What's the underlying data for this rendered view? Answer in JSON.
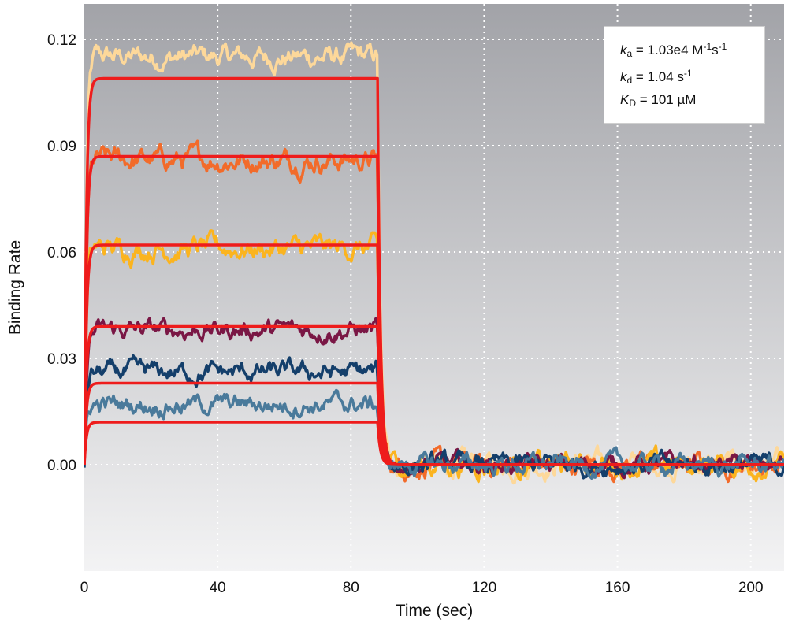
{
  "chart_data": {
    "type": "line",
    "title": "",
    "xlabel": "Time (sec)",
    "ylabel": "Binding Rate",
    "xlim": [
      0,
      210
    ],
    "ylim": [
      -0.03,
      0.13
    ],
    "x_ticks": [
      0,
      40,
      80,
      120,
      160,
      200
    ],
    "x_tick_labels": [
      "0",
      "40",
      "80",
      "120",
      "160",
      "200"
    ],
    "y_ticks": [
      0.0,
      0.03,
      0.06,
      0.09,
      0.12
    ],
    "y_tick_labels": [
      "0.00",
      "0.03",
      "0.06",
      "0.09",
      "0.12"
    ],
    "grid": true,
    "legend": "none",
    "association_phase": [
      0,
      88
    ],
    "dissociation_phase": [
      88,
      210
    ],
    "series": [
      {
        "plateau": 0.115,
        "color": "#fdd89a",
        "noise": 0.0035
      },
      {
        "plateau": 0.086,
        "color": "#f26b2a",
        "noise": 0.0035
      },
      {
        "plateau": 0.061,
        "color": "#fbb41f",
        "noise": 0.0035
      },
      {
        "plateau": 0.038,
        "color": "#7a1745",
        "noise": 0.003
      },
      {
        "plateau": 0.026,
        "color": "#143f6b",
        "noise": 0.003
      },
      {
        "plateau": 0.017,
        "color": "#4a7a9b",
        "noise": 0.003
      }
    ],
    "fits": {
      "color": "#ee1c1c",
      "plateaus": [
        0.109,
        0.087,
        0.062,
        0.039,
        0.023,
        0.012
      ]
    },
    "annotation": {
      "ka_sym": "k",
      "ka_sub": "a",
      "ka_text": " = 1.03e4 M",
      "ka_sup1": "-1",
      "ka_mid": "s",
      "ka_sup2": "-1",
      "kd_sym": "k",
      "kd_sub": "d",
      "kd_text": " = 1.04 s",
      "kd_sup": "-1",
      "KD_sym": "K",
      "KD_sub": "D",
      "KD_text": " = 101 µM"
    },
    "background": {
      "top": "#a2a3a8",
      "bottom": "#f3f3f4"
    }
  }
}
